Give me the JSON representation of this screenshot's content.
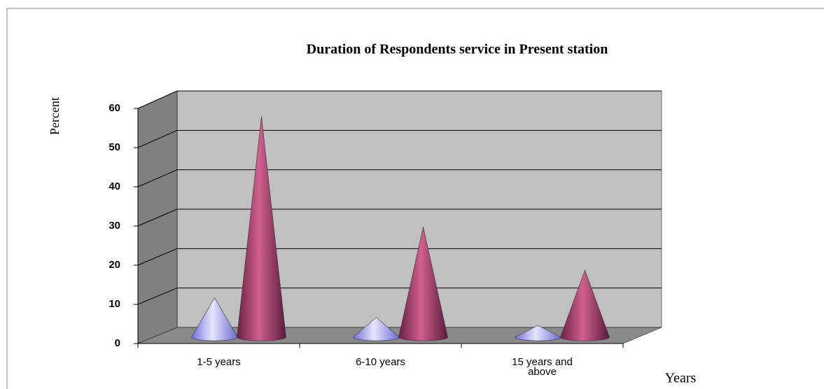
{
  "chart_data": {
    "type": "cone3d",
    "title": "Duration of Respondents service in Present station",
    "y_label": "Percent",
    "x_label": "Years",
    "categories": [
      "1-5 years",
      "6-10 years",
      "15 years and above"
    ],
    "series": [
      {
        "color": "#9999ff",
        "values": [
          10,
          5,
          3
        ]
      },
      {
        "color": "#993366",
        "values": [
          56,
          28,
          17
        ]
      }
    ],
    "ylim": [
      0,
      60
    ],
    "yticks": [
      0,
      10,
      20,
      30,
      40,
      50,
      60
    ],
    "grid": true
  }
}
